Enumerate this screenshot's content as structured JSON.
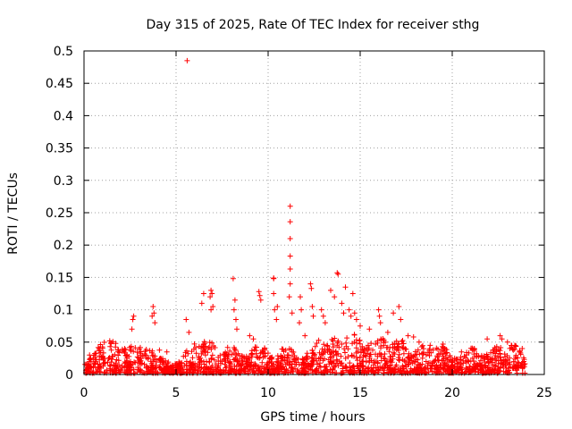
{
  "chart_data": {
    "type": "scatter",
    "title": "Day 315 of 2025, Rate Of TEC Index for receiver sthg",
    "xlabel": "GPS time / hours",
    "ylabel": "ROTI / TECUs",
    "xlim": [
      0,
      25
    ],
    "ylim": [
      0,
      0.5
    ],
    "x_ticks": [
      "0",
      "5",
      "10",
      "15",
      "20",
      "25"
    ],
    "y_ticks": [
      "0",
      "0.05",
      "0.1",
      "0.15",
      "0.2",
      "0.25",
      "0.3",
      "0.35",
      "0.4",
      "0.45",
      "0.5"
    ],
    "grid": true,
    "marker": "+",
    "color": "#ff0000",
    "series": [
      {
        "name": "ROTI",
        "points": [
          [
            5.6,
            0.485
          ],
          [
            11.2,
            0.26
          ],
          [
            11.2,
            0.236
          ],
          [
            11.2,
            0.21
          ],
          [
            11.2,
            0.183
          ],
          [
            11.2,
            0.163
          ],
          [
            11.2,
            0.14
          ],
          [
            11.15,
            0.12
          ],
          [
            11.3,
            0.095
          ],
          [
            13.75,
            0.157
          ],
          [
            13.8,
            0.155
          ],
          [
            12.3,
            0.14
          ],
          [
            12.35,
            0.133
          ],
          [
            13.4,
            0.13
          ],
          [
            13.6,
            0.12
          ],
          [
            14.2,
            0.135
          ],
          [
            14.6,
            0.125
          ],
          [
            8.1,
            0.148
          ],
          [
            10.3,
            0.149
          ],
          [
            10.3,
            0.148
          ],
          [
            10.3,
            0.125
          ],
          [
            10.35,
            0.1
          ],
          [
            9.5,
            0.128
          ],
          [
            9.55,
            0.122
          ],
          [
            9.6,
            0.115
          ],
          [
            6.9,
            0.13
          ],
          [
            6.95,
            0.125
          ],
          [
            6.85,
            0.12
          ],
          [
            7.0,
            0.105
          ],
          [
            6.9,
            0.1
          ],
          [
            6.5,
            0.125
          ],
          [
            6.4,
            0.11
          ],
          [
            3.75,
            0.105
          ],
          [
            3.8,
            0.095
          ],
          [
            3.7,
            0.09
          ],
          [
            3.85,
            0.08
          ],
          [
            2.7,
            0.09
          ],
          [
            2.65,
            0.085
          ],
          [
            2.6,
            0.07
          ],
          [
            5.55,
            0.085
          ],
          [
            5.7,
            0.065
          ],
          [
            8.2,
            0.115
          ],
          [
            8.15,
            0.1
          ],
          [
            8.25,
            0.085
          ],
          [
            8.3,
            0.07
          ],
          [
            10.5,
            0.105
          ],
          [
            10.45,
            0.085
          ],
          [
            11.75,
            0.12
          ],
          [
            11.8,
            0.1
          ],
          [
            11.7,
            0.08
          ],
          [
            12.4,
            0.105
          ],
          [
            12.45,
            0.09
          ],
          [
            12.9,
            0.1
          ],
          [
            13.0,
            0.09
          ],
          [
            13.1,
            0.08
          ],
          [
            14.0,
            0.11
          ],
          [
            14.1,
            0.095
          ],
          [
            14.4,
            0.1
          ],
          [
            14.5,
            0.09
          ],
          [
            14.7,
            0.095
          ],
          [
            14.8,
            0.085
          ],
          [
            15.0,
            0.075
          ],
          [
            16.0,
            0.1
          ],
          [
            16.05,
            0.09
          ],
          [
            16.1,
            0.08
          ],
          [
            16.8,
            0.095
          ],
          [
            17.1,
            0.105
          ],
          [
            17.2,
            0.085
          ],
          [
            17.6,
            0.06
          ],
          [
            17.9,
            0.058
          ],
          [
            19.5,
            0.047
          ],
          [
            19.6,
            0.04
          ],
          [
            21.9,
            0.055
          ],
          [
            22.6,
            0.06
          ],
          [
            22.7,
            0.055
          ],
          [
            23.0,
            0.05
          ],
          [
            23.4,
            0.045
          ],
          [
            1.4,
            0.052
          ],
          [
            0.3,
            0.03
          ],
          [
            4.5,
            0.035
          ],
          [
            9.0,
            0.06
          ],
          [
            9.2,
            0.055
          ],
          [
            12.0,
            0.06
          ],
          [
            15.5,
            0.07
          ],
          [
            16.5,
            0.065
          ],
          [
            18.2,
            0.05
          ],
          [
            18.8,
            0.045
          ],
          [
            20.5,
            0.035
          ],
          [
            21.2,
            0.04
          ],
          [
            23.8,
            0.04
          ]
        ]
      }
    ]
  }
}
